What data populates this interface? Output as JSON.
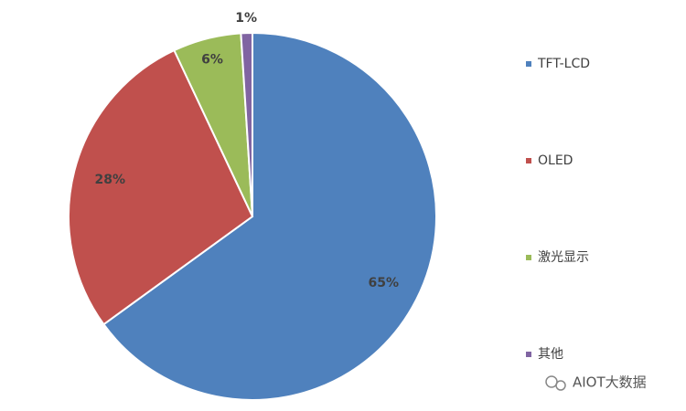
{
  "chart_data": {
    "type": "pie",
    "categories": [
      "TFT-LCD",
      "OLED",
      "激光显示",
      "其他"
    ],
    "values": [
      65,
      28,
      6,
      1
    ],
    "value_labels": [
      "65%",
      "28%",
      "6%",
      "1%"
    ],
    "colors": [
      "#4f81bd",
      "#c0504d",
      "#9bbb59",
      "#8064a2"
    ],
    "legend": "right",
    "watermark": "AIOT大数据"
  }
}
